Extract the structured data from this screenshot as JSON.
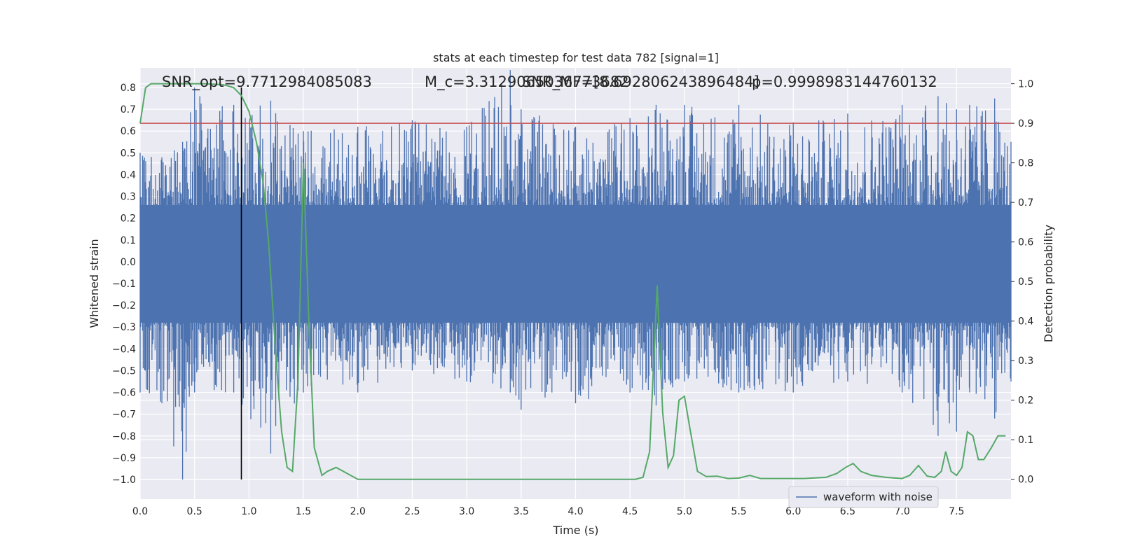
{
  "chart_data": {
    "type": "line",
    "title": "stats at each timestep for test data 782 [signal=1]",
    "xlabel": "Time (s)",
    "ylabel": "Whitened strain",
    "y2label": "Detection probability",
    "xlim": [
      0,
      8
    ],
    "ylim": [
      -1.09,
      0.89
    ],
    "y2lim": [
      -0.05,
      1.04
    ],
    "x_ticks": [
      "0.0",
      "0.5",
      "1.0",
      "1.5",
      "2.0",
      "2.5",
      "3.0",
      "3.5",
      "4.0",
      "4.5",
      "5.0",
      "5.5",
      "6.0",
      "6.5",
      "7.0",
      "7.5"
    ],
    "y_ticks": [
      "0.8",
      "0.7",
      "0.6",
      "0.5",
      "0.4",
      "0.3",
      "0.2",
      "0.1",
      "0.0",
      "−0.1",
      "−0.2",
      "−0.3",
      "−0.4",
      "−0.5",
      "−0.6",
      "−0.7",
      "−0.8",
      "−0.9",
      "−1.0"
    ],
    "y2_ticks": [
      "1.0",
      "0.9",
      "0.8",
      "0.7",
      "0.6",
      "0.5",
      "0.4",
      "0.3",
      "0.2",
      "0.1",
      "0.0"
    ],
    "grid": true,
    "legend": {
      "position": "lower-right",
      "entries": [
        "waveform with noise"
      ]
    },
    "annotations": {
      "snr_opt": "SNR_opt=9.7712984085083",
      "chirp_mass": "M_c=3.3129065036773682",
      "snr_mf": "SNR_MF=[8.692806243896484]",
      "prob": "p=0.9998983144760132"
    },
    "marker_line_x": 0.93,
    "threshold_prob": 0.9,
    "series": [
      {
        "name": "waveform with noise",
        "envelope": {
          "x": [
            0.0,
            0.2,
            0.39,
            0.5,
            0.86,
            1.2,
            1.5,
            2.0,
            2.5,
            3.0,
            3.4,
            3.5,
            4.0,
            4.5,
            4.74,
            5.0,
            5.5,
            6.0,
            6.5,
            7.0,
            7.33,
            7.5,
            7.62,
            7.85,
            8.0
          ],
          "max": [
            0.5,
            0.48,
            0.55,
            0.8,
            0.72,
            0.74,
            0.6,
            0.62,
            0.65,
            0.62,
            0.88,
            0.7,
            0.62,
            0.66,
            0.72,
            0.72,
            0.72,
            0.64,
            0.68,
            0.72,
            0.76,
            0.7,
            0.72,
            0.75,
            0.55
          ],
          "min": [
            -0.6,
            -0.65,
            -1.0,
            -0.6,
            -0.6,
            -0.88,
            -0.6,
            -0.6,
            -0.5,
            -0.55,
            -0.6,
            -0.68,
            -0.65,
            -0.6,
            -0.66,
            -0.55,
            -0.6,
            -0.6,
            -0.55,
            -0.6,
            -0.8,
            -0.78,
            -0.6,
            -0.72,
            -0.55
          ]
        }
      },
      {
        "name": "detection probability",
        "x": [
          0.0,
          0.05,
          0.1,
          0.2,
          0.4,
          0.6,
          0.75,
          0.8,
          0.86,
          0.93,
          1.0,
          1.07,
          1.13,
          1.18,
          1.25,
          1.3,
          1.35,
          1.4,
          1.45,
          1.5,
          1.55,
          1.6,
          1.67,
          1.72,
          1.8,
          2.0,
          2.2,
          2.4,
          2.6,
          2.8,
          3.0,
          3.4,
          3.8,
          4.1,
          4.2,
          4.3,
          4.45,
          4.5,
          4.55,
          4.62,
          4.68,
          4.75,
          4.8,
          4.85,
          4.9,
          4.95,
          5.0,
          5.05,
          5.12,
          5.2,
          5.3,
          5.4,
          5.5,
          5.6,
          5.7,
          5.9,
          6.1,
          6.3,
          6.4,
          6.48,
          6.55,
          6.62,
          6.72,
          6.85,
          7.0,
          7.07,
          7.15,
          7.23,
          7.3,
          7.36,
          7.4,
          7.45,
          7.5,
          7.55,
          7.6,
          7.65,
          7.7,
          7.75,
          7.82,
          7.88,
          7.95
        ],
        "y": [
          0.9,
          0.99,
          1.0,
          1.0,
          1.0,
          1.0,
          0.998,
          0.995,
          0.99,
          0.97,
          0.93,
          0.85,
          0.75,
          0.6,
          0.3,
          0.12,
          0.03,
          0.02,
          0.25,
          0.8,
          0.4,
          0.08,
          0.01,
          0.02,
          0.03,
          0.0,
          0.0,
          0.0,
          0.0,
          0.0,
          0.0,
          0.0,
          0.0,
          0.0,
          0.0,
          0.0,
          0.0,
          0.0,
          0.0,
          0.005,
          0.07,
          0.49,
          0.17,
          0.03,
          0.06,
          0.2,
          0.21,
          0.13,
          0.02,
          0.007,
          0.008,
          0.002,
          0.003,
          0.01,
          0.002,
          0.002,
          0.002,
          0.005,
          0.015,
          0.03,
          0.04,
          0.02,
          0.01,
          0.005,
          0.002,
          0.01,
          0.035,
          0.008,
          0.005,
          0.02,
          0.07,
          0.02,
          0.01,
          0.03,
          0.12,
          0.11,
          0.05,
          0.05,
          0.08,
          0.11,
          0.11
        ]
      }
    ]
  }
}
